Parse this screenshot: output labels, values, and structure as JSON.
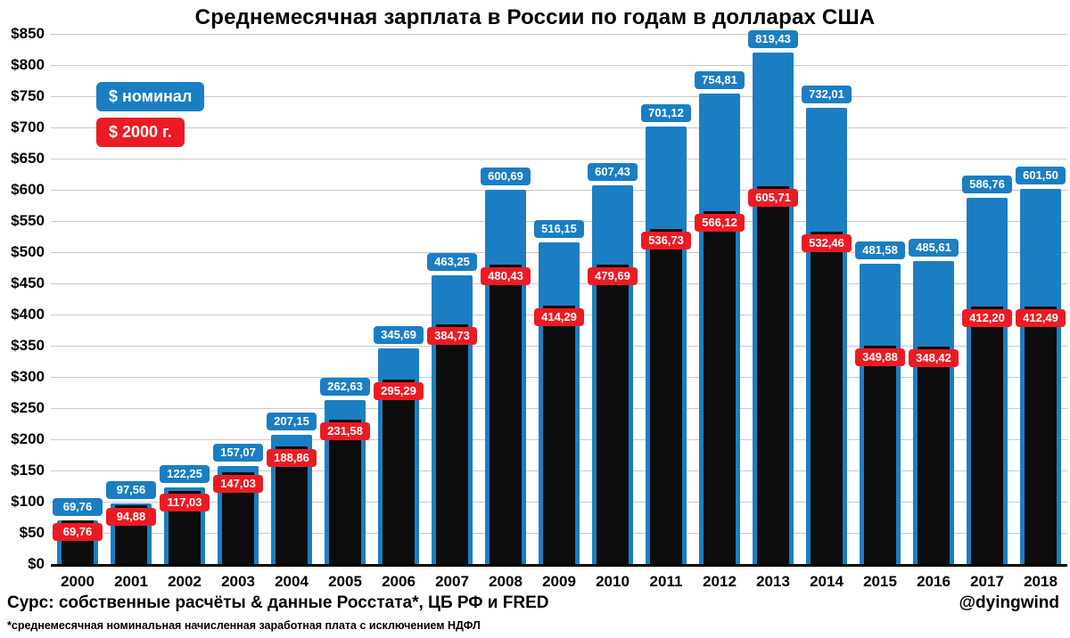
{
  "title": "Среднемесячная зарплата в России по годам в долларах США",
  "legend": {
    "nominal": "$ номинал",
    "real": "$ 2000 г."
  },
  "footer": {
    "source": "Сурс: собственные расчёты & данные Росстата*, ЦБ РФ и FRED",
    "handle": "@dyingwind",
    "footnote": "*среднемесячная номинальная начисленная заработная плата с исключением НДФЛ"
  },
  "colors": {
    "nominal_blue": "#1b7ec2",
    "real_label_red": "#ec1b23",
    "real_bar_black": "#0d0d0d",
    "grid": "#c9c9c9",
    "axis": "#000000",
    "background": "#ffffff",
    "label_text": "#ffffff"
  },
  "chart_data": {
    "type": "bar",
    "title": "Среднемесячная зарплата в России по годам в долларах США",
    "categories": [
      "2000",
      "2001",
      "2002",
      "2003",
      "2004",
      "2005",
      "2006",
      "2007",
      "2008",
      "2009",
      "2010",
      "2011",
      "2012",
      "2013",
      "2014",
      "2015",
      "2016",
      "2017",
      "2018"
    ],
    "series": [
      {
        "name": "$ номинал",
        "values": [
          69.76,
          97.56,
          122.25,
          157.07,
          207.15,
          262.63,
          345.69,
          463.25,
          600.69,
          516.15,
          607.43,
          701.12,
          754.81,
          819.43,
          732.01,
          481.58,
          485.61,
          586.76,
          601.5
        ],
        "labels": [
          "69,76",
          "97,56",
          "122,25",
          "157,07",
          "207,15",
          "262,63",
          "345,69",
          "463,25",
          "600,69",
          "516,15",
          "607,43",
          "701,12",
          "754,81",
          "819,43",
          "732,01",
          "481,58",
          "485,61",
          "586,76",
          "601,50"
        ]
      },
      {
        "name": "$ 2000 г.",
        "values": [
          69.76,
          94.88,
          117.03,
          147.03,
          188.86,
          231.58,
          295.29,
          384.73,
          480.43,
          414.29,
          479.69,
          536.73,
          566.12,
          605.71,
          532.46,
          349.88,
          348.42,
          412.2,
          412.49
        ],
        "labels": [
          "69,76",
          "94,88",
          "117,03",
          "147,03",
          "188,86",
          "231,58",
          "295,29",
          "384,73",
          "480,43",
          "414,29",
          "479,69",
          "536,73",
          "566,12",
          "605,71",
          "532,46",
          "349,88",
          "348,42",
          "412,20",
          "412,49"
        ]
      }
    ],
    "ylim": [
      0,
      850
    ],
    "ytick_step": 50,
    "ytick_prefix": "$",
    "grid": true,
    "legend_position": "upper-left"
  }
}
